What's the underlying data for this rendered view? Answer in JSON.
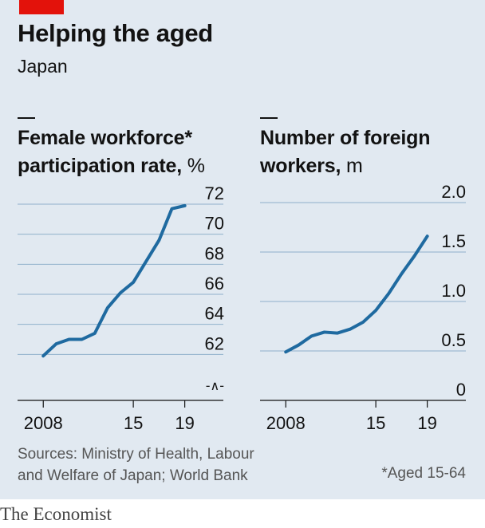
{
  "header": {
    "title": "Helping the aged",
    "subtitle": "Japan"
  },
  "colors": {
    "accent": "#e3120b",
    "line": "#1f6aa0",
    "background": "#e1e9f1",
    "grid": "#8fb0cb"
  },
  "chart_data": [
    {
      "type": "line",
      "title_line1": "Female workforce*",
      "title_line2": "participation rate,",
      "unit": "%",
      "x_tick_labels": [
        "2008",
        "15",
        "19"
      ],
      "x_ticks": [
        2008,
        2015,
        2019
      ],
      "y_tick_labels": [
        "72",
        "70",
        "68",
        "66",
        "64",
        "62"
      ],
      "y_ticks": [
        72,
        70,
        68,
        66,
        64,
        62
      ],
      "axis_break_symbol": "-∧-",
      "ylim": [
        60,
        72
      ],
      "xlim": [
        2006,
        2022
      ],
      "grid": true,
      "series": [
        {
          "x": [
            2008,
            2009,
            2010,
            2011,
            2012,
            2013,
            2014,
            2015,
            2016,
            2017,
            2018,
            2019
          ],
          "values": [
            61.9,
            62.7,
            63.0,
            63.0,
            63.4,
            65.1,
            66.1,
            66.8,
            68.2,
            69.6,
            71.7,
            71.9
          ]
        }
      ]
    },
    {
      "type": "line",
      "title_line1": "Number of foreign",
      "title_line2": "workers,",
      "unit": "m",
      "x_tick_labels": [
        "2008",
        "15",
        "19"
      ],
      "x_ticks": [
        2008,
        2015,
        2019
      ],
      "y_tick_labels": [
        "2.0",
        "1.5",
        "1.0",
        "0.5",
        "0"
      ],
      "y_ticks": [
        2.0,
        1.5,
        1.0,
        0.5,
        0
      ],
      "ylim": [
        0,
        2.0
      ],
      "xlim": [
        2006,
        2022
      ],
      "grid": true,
      "series": [
        {
          "x": [
            2008,
            2009,
            2010,
            2011,
            2012,
            2013,
            2014,
            2015,
            2016,
            2017,
            2018,
            2019
          ],
          "values": [
            0.49,
            0.56,
            0.65,
            0.69,
            0.68,
            0.72,
            0.79,
            0.91,
            1.08,
            1.28,
            1.46,
            1.66
          ]
        }
      ]
    }
  ],
  "footer": {
    "sources_line1": "Sources: Ministry of Health, Labour",
    "sources_line2": "and Welfare of Japan; World Bank",
    "footnote": "*Aged 15-64",
    "brand": "The Economist"
  }
}
